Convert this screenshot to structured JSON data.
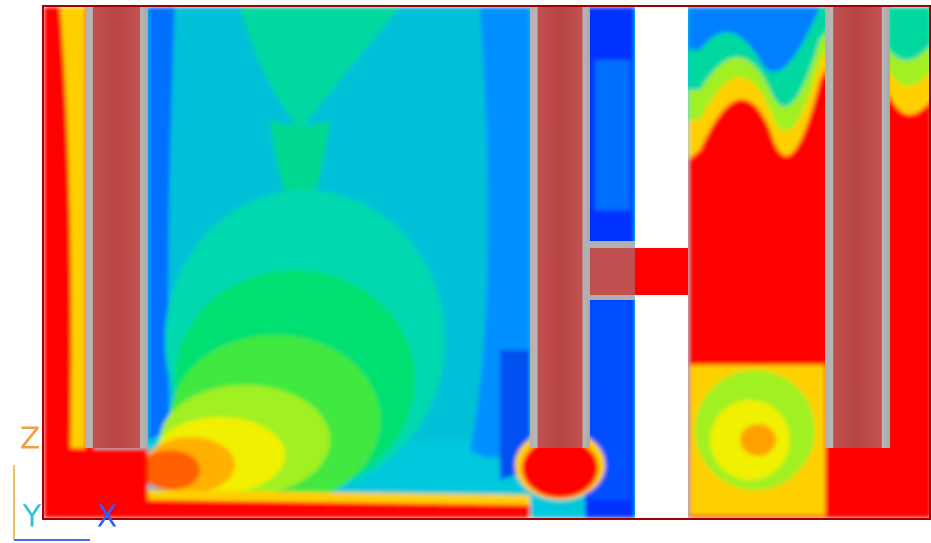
{
  "axis_triad": {
    "z_label": "Z",
    "y_label": "Y",
    "x_label": "X"
  }
}
